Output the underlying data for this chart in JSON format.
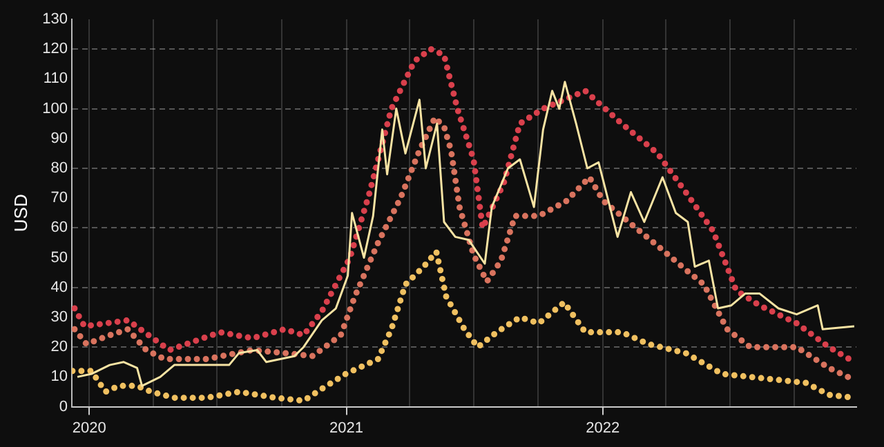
{
  "chart_data": {
    "type": "line",
    "ylabel": "USD",
    "xlim": [
      "2019-12-07",
      "2022-12-28"
    ],
    "xticks": [
      {
        "value": "2020",
        "label": "2020"
      },
      {
        "value": "2020-04",
        "label": null
      },
      {
        "value": "2020-07",
        "label": null
      },
      {
        "value": "2020-10",
        "label": null
      },
      {
        "value": "2021",
        "label": "2021"
      },
      {
        "value": "2021-04",
        "label": null
      },
      {
        "value": "2021-07",
        "label": null
      },
      {
        "value": "2021-10",
        "label": null
      },
      {
        "value": "2022",
        "label": "2022"
      },
      {
        "value": "2022-04",
        "label": null
      },
      {
        "value": "2022-07",
        "label": null
      },
      {
        "value": "2022-10",
        "label": null
      }
    ],
    "ylim": [
      0,
      130
    ],
    "yticks": [
      0,
      10,
      20,
      30,
      40,
      50,
      60,
      70,
      80,
      90,
      100,
      110,
      120,
      130
    ],
    "grid": true,
    "legend": false,
    "series": [
      {
        "color": "#d9404c",
        "line_style": "dotted",
        "x": [
          "2019-12-11",
          "2019-12-25",
          "2020-02-25",
          "2020-04-24",
          "2020-07-05",
          "2020-08-20",
          "2020-10-05",
          "2020-11-01",
          "2020-11-27",
          "2021-01-06",
          "2021-02-02",
          "2021-03-06",
          "2021-04-08",
          "2021-05-01",
          "2021-05-20",
          "2021-06-08",
          "2021-07-01",
          "2021-07-14",
          "2021-08-13",
          "2021-09-05",
          "2021-10-08",
          "2021-12-07",
          "2022-01-28",
          "2022-03-20",
          "2022-04-29",
          "2022-06-07",
          "2022-07-10",
          "2022-08-12",
          "2022-10-04",
          "2022-11-19",
          "2022-12-25"
        ],
        "values": [
          33,
          27,
          29,
          19,
          25,
          23,
          26,
          24,
          32,
          50,
          71,
          100,
          116,
          120,
          118,
          100,
          83,
          60,
          75,
          95,
          100,
          106,
          95,
          85,
          72,
          59,
          39,
          34,
          28,
          20,
          15
        ]
      },
      {
        "color": "#d9735e",
        "line_style": "dotted",
        "x": [
          "2019-12-11",
          "2019-12-28",
          "2020-01-30",
          "2020-02-25",
          "2020-03-22",
          "2020-04-17",
          "2020-06-16",
          "2020-08-20",
          "2020-10-05",
          "2020-11-14",
          "2020-12-24",
          "2021-01-13",
          "2021-02-15",
          "2021-03-19",
          "2021-04-15",
          "2021-05-07",
          "2021-05-20",
          "2021-05-30",
          "2021-06-11",
          "2021-07-01",
          "2021-07-20",
          "2021-08-09",
          "2021-08-29",
          "2021-10-02",
          "2021-11-10",
          "2021-12-13",
          "2022-01-02",
          "2022-02-17",
          "2022-03-20",
          "2022-04-29",
          "2022-05-25",
          "2022-06-27",
          "2022-07-30",
          "2022-10-04",
          "2022-11-19",
          "2022-12-25"
        ],
        "values": [
          26,
          21,
          24,
          26,
          19,
          16,
          16,
          19,
          18,
          17,
          24,
          37,
          55,
          70,
          86,
          97,
          94,
          86,
          67,
          51,
          42,
          49,
          64,
          64,
          69,
          77,
          69,
          60,
          54,
          46,
          41,
          26,
          20,
          20,
          13,
          9
        ]
      },
      {
        "color": "#f0c060",
        "line_style": "dotted",
        "x": [
          "2019-12-08",
          "2020-01-04",
          "2020-01-24",
          "2020-02-12",
          "2020-03-09",
          "2020-03-29",
          "2020-05-01",
          "2020-06-16",
          "2020-08-01",
          "2020-09-22",
          "2020-11-01",
          "2020-11-27",
          "2020-12-31",
          "2021-02-15",
          "2021-03-06",
          "2021-03-26",
          "2021-04-21",
          "2021-05-09",
          "2021-05-23",
          "2021-06-18",
          "2021-07-07",
          "2021-08-03",
          "2021-09-05",
          "2021-10-02",
          "2021-11-07",
          "2021-12-07",
          "2022-01-28",
          "2022-03-07",
          "2022-04-29",
          "2022-06-20",
          "2022-07-30",
          "2022-10-17",
          "2022-11-19",
          "2022-12-25"
        ],
        "values": [
          12,
          12,
          5,
          7,
          7,
          5,
          3,
          3,
          5,
          3,
          2,
          6,
          11,
          16,
          26,
          41,
          47,
          52,
          37,
          26,
          20,
          25,
          30,
          28,
          35,
          25,
          25,
          21,
          18,
          11,
          10,
          8,
          4,
          3
        ]
      },
      {
        "color": "#f7e3a3",
        "line_style": "solid",
        "x": [
          "2019-12-15",
          "2020-01-04",
          "2020-01-30",
          "2020-02-19",
          "2020-03-09",
          "2020-03-16",
          "2020-04-11",
          "2020-05-01",
          "2020-06-16",
          "2020-07-18",
          "2020-08-01",
          "2020-08-27",
          "2020-09-09",
          "2020-10-19",
          "2020-11-01",
          "2020-11-27",
          "2020-12-17",
          "2021-01-03",
          "2021-01-09",
          "2021-01-26",
          "2021-02-08",
          "2021-02-21",
          "2021-02-28",
          "2021-03-13",
          "2021-03-26",
          "2021-04-15",
          "2021-04-24",
          "2021-05-10",
          "2021-05-20",
          "2021-06-05",
          "2021-06-24",
          "2021-07-17",
          "2021-07-27",
          "2021-08-19",
          "2021-09-05",
          "2021-09-25",
          "2021-10-08",
          "2021-10-21",
          "2021-10-31",
          "2021-11-08",
          "2021-11-24",
          "2021-12-10",
          "2021-12-26",
          "2022-01-22",
          "2022-02-10",
          "2022-03-01",
          "2022-03-27",
          "2022-04-15",
          "2022-05-02",
          "2022-05-12",
          "2022-06-01",
          "2022-06-14",
          "2022-07-03",
          "2022-07-23",
          "2022-08-12",
          "2022-09-08",
          "2022-10-04",
          "2022-11-03",
          "2022-11-10",
          "2022-12-25"
        ],
        "values": [
          10,
          11,
          14,
          15,
          13,
          7,
          10,
          14,
          14,
          14,
          18,
          19,
          15,
          17,
          20,
          29,
          33,
          44,
          65,
          50,
          64,
          93,
          78,
          100,
          85,
          103,
          80,
          95,
          62,
          57,
          56,
          48,
          67,
          80,
          83,
          67,
          93,
          106,
          100,
          109,
          95,
          80,
          82,
          57,
          72,
          62,
          77,
          65,
          62,
          47,
          49,
          33,
          34,
          38,
          38,
          33,
          31,
          34,
          26,
          27
        ]
      }
    ]
  }
}
